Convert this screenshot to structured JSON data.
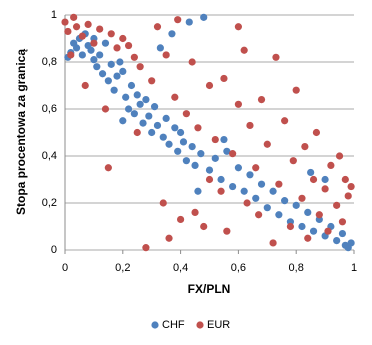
{
  "chart_data": {
    "type": "scatter",
    "x_label": "FX/PLN",
    "y_label": "Stopa procentowa za granicą",
    "xlim": [
      0,
      1
    ],
    "ylim": [
      0,
      1
    ],
    "xticks": [
      0,
      {
        "value": 0.2,
        "label": "0,2"
      },
      {
        "value": 0.4,
        "label": "0,4"
      },
      {
        "value": 0.6,
        "label": "0,6"
      },
      {
        "value": 0.8,
        "label": "0,8"
      },
      1
    ],
    "yticks": [
      0,
      {
        "value": 0.2,
        "label": "0,2"
      },
      {
        "value": 0.4,
        "label": "0,4"
      },
      {
        "value": 0.6,
        "label": "0,6"
      },
      {
        "value": 0.8,
        "label": "0,8"
      },
      1
    ],
    "grid": true,
    "legend": "bottom",
    "series": [
      {
        "name": "CHF",
        "color": "#4f81bd",
        "x": [
          0.01,
          0.02,
          0.03,
          0.04,
          0.05,
          0.06,
          0.07,
          0.08,
          0.09,
          0.1,
          0.11,
          0.12,
          0.13,
          0.14,
          0.15,
          0.16,
          0.17,
          0.18,
          0.19,
          0.2,
          0.21,
          0.22,
          0.23,
          0.24,
          0.25,
          0.26,
          0.27,
          0.28,
          0.29,
          0.3,
          0.31,
          0.32,
          0.33,
          0.34,
          0.35,
          0.36,
          0.37,
          0.38,
          0.39,
          0.4,
          0.41,
          0.42,
          0.43,
          0.44,
          0.45,
          0.47,
          0.48,
          0.5,
          0.52,
          0.54,
          0.56,
          0.58,
          0.6,
          0.62,
          0.64,
          0.66,
          0.68,
          0.7,
          0.72,
          0.74,
          0.76,
          0.78,
          0.8,
          0.82,
          0.84,
          0.86,
          0.88,
          0.9,
          0.92,
          0.94,
          0.96,
          0.97,
          0.98,
          0.99,
          0.1,
          0.2,
          0.46,
          0.55,
          0.85,
          0.9
        ],
        "values": [
          0.82,
          0.84,
          0.88,
          0.86,
          0.9,
          0.83,
          0.92,
          0.87,
          0.85,
          0.81,
          0.78,
          0.83,
          0.75,
          0.88,
          0.72,
          0.79,
          0.68,
          0.74,
          0.8,
          0.76,
          0.65,
          0.6,
          0.7,
          0.58,
          0.66,
          0.62,
          0.54,
          0.64,
          0.57,
          0.5,
          0.61,
          0.53,
          0.86,
          0.48,
          0.56,
          0.45,
          0.92,
          0.52,
          0.42,
          0.5,
          0.46,
          0.38,
          0.97,
          0.44,
          0.36,
          0.41,
          0.99,
          0.34,
          0.39,
          0.3,
          0.42,
          0.27,
          0.35,
          0.25,
          0.32,
          0.22,
          0.28,
          0.18,
          0.25,
          0.15,
          0.21,
          0.12,
          0.19,
          0.1,
          0.16,
          0.08,
          0.13,
          0.06,
          0.1,
          0.04,
          0.07,
          0.02,
          0.01,
          0.03,
          0.9,
          0.55,
          0.25,
          0.47,
          0.33,
          0.3
        ]
      },
      {
        "name": "EUR",
        "color": "#c0504d",
        "x": [
          0.0,
          0.01,
          0.03,
          0.04,
          0.06,
          0.08,
          0.1,
          0.12,
          0.14,
          0.16,
          0.18,
          0.2,
          0.22,
          0.24,
          0.26,
          0.28,
          0.3,
          0.32,
          0.34,
          0.35,
          0.36,
          0.38,
          0.39,
          0.4,
          0.42,
          0.44,
          0.45,
          0.46,
          0.48,
          0.5,
          0.52,
          0.54,
          0.55,
          0.56,
          0.58,
          0.6,
          0.62,
          0.63,
          0.64,
          0.66,
          0.67,
          0.68,
          0.7,
          0.72,
          0.73,
          0.74,
          0.76,
          0.78,
          0.79,
          0.8,
          0.82,
          0.83,
          0.84,
          0.86,
          0.87,
          0.88,
          0.9,
          0.91,
          0.92,
          0.94,
          0.95,
          0.96,
          0.97,
          0.98,
          0.99,
          0.02,
          0.07,
          0.15,
          0.25,
          0.5,
          0.6
        ],
        "values": [
          0.97,
          0.93,
          0.99,
          0.95,
          0.91,
          0.96,
          0.88,
          0.94,
          0.6,
          0.92,
          0.86,
          0.9,
          0.87,
          0.82,
          0.78,
          0.01,
          0.72,
          0.95,
          0.2,
          0.83,
          0.05,
          0.65,
          0.98,
          0.13,
          0.58,
          0.8,
          0.16,
          0.52,
          0.1,
          0.7,
          0.47,
          0.25,
          0.73,
          0.08,
          0.41,
          0.62,
          0.85,
          0.2,
          0.53,
          0.35,
          0.15,
          0.64,
          0.45,
          0.03,
          0.82,
          0.28,
          0.55,
          0.1,
          0.38,
          0.68,
          0.22,
          0.44,
          0.05,
          0.3,
          0.5,
          0.15,
          0.26,
          0.08,
          0.36,
          0.19,
          0.4,
          0.12,
          0.3,
          0.23,
          0.27,
          0.83,
          0.7,
          0.35,
          0.5,
          0.3,
          0.95
        ]
      }
    ]
  }
}
